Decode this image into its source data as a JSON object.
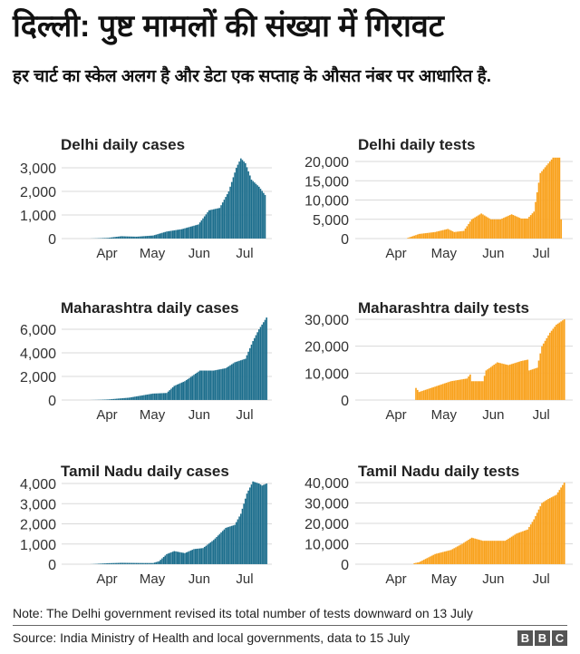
{
  "header": {
    "title": "दिल्ली: पुष्ट मामलों की संख्या में गिरावट",
    "subtitle": "हर चार्ट का स्केल अलग है और डेटा एक सप्ताह के औसत नंबर पर आधारित है."
  },
  "footer": {
    "note": "Note: The Delhi government revised its total number of tests downward on 13 July",
    "source": "Source: India Ministry of Health and local governments, data to 15 July",
    "logo": [
      "B",
      "B",
      "C"
    ]
  },
  "colors": {
    "cases": "#1b6d8c",
    "tests": "#f9a11b",
    "grid": "#d9d9d9"
  },
  "chart_data": [
    {
      "type": "bar",
      "title": "Delhi daily cases",
      "color": "#1b6d8c",
      "x_ticks": [
        "Apr",
        "May",
        "Jun",
        "Jul"
      ],
      "y_ticks": [
        0,
        1000,
        2000,
        3000
      ],
      "ylim": [
        0,
        3000
      ],
      "grid": true,
      "points": [
        [
          "Mar 20",
          0
        ],
        [
          "Apr 1",
          30
        ],
        [
          "Apr 10",
          100
        ],
        [
          "Apr 20",
          80
        ],
        [
          "May 1",
          130
        ],
        [
          "May 10",
          300
        ],
        [
          "May 20",
          400
        ],
        [
          "May 31",
          600
        ],
        [
          "Jun 7",
          1200
        ],
        [
          "Jun 14",
          1300
        ],
        [
          "Jun 20",
          2000
        ],
        [
          "Jun 25",
          3000
        ],
        [
          "Jun 28",
          3400
        ],
        [
          "Jul 1",
          3200
        ],
        [
          "Jul 5",
          2500
        ],
        [
          "Jul 10",
          2200
        ],
        [
          "Jul 14",
          1850
        ]
      ]
    },
    {
      "type": "bar",
      "title": "Delhi daily tests",
      "color": "#f9a11b",
      "x_ticks": [
        "Apr",
        "May",
        "Jun",
        "Jul"
      ],
      "y_ticks": [
        0,
        5000,
        10000,
        15000,
        20000
      ],
      "ylim": [
        0,
        20000
      ],
      "grid": true,
      "points": [
        [
          "Apr 8",
          200
        ],
        [
          "Apr 15",
          1200
        ],
        [
          "Apr 25",
          1700
        ],
        [
          "May 3",
          2500
        ],
        [
          "May 7",
          1700
        ],
        [
          "May 13",
          2000
        ],
        [
          "May 18",
          5000
        ],
        [
          "May 24",
          6500
        ],
        [
          "May 30",
          5000
        ],
        [
          "Jun 5",
          5000
        ],
        [
          "Jun 12",
          6300
        ],
        [
          "Jun 18",
          5200
        ],
        [
          "Jun 22",
          5200
        ],
        [
          "Jun 26",
          7000
        ],
        [
          "Jun 30",
          17000
        ],
        [
          "Jul 3",
          18500
        ],
        [
          "Jul 8",
          21000
        ],
        [
          "Jul 12",
          21000
        ],
        [
          "Jul 13",
          5000
        ]
      ]
    },
    {
      "type": "bar",
      "title": "Maharashtra daily cases",
      "color": "#1b6d8c",
      "x_ticks": [
        "Apr",
        "May",
        "Jun",
        "Jul"
      ],
      "y_ticks": [
        0,
        2000,
        4000,
        6000
      ],
      "ylim": [
        0,
        6000
      ],
      "grid": true,
      "points": [
        [
          "Mar 20",
          0
        ],
        [
          "Apr 1",
          50
        ],
        [
          "Apr 15",
          200
        ],
        [
          "May 1",
          550
        ],
        [
          "May 10",
          600
        ],
        [
          "May 15",
          1200
        ],
        [
          "May 22",
          1600
        ],
        [
          "Jun 1",
          2500
        ],
        [
          "Jun 10",
          2500
        ],
        [
          "Jun 18",
          2700
        ],
        [
          "Jun 24",
          3200
        ],
        [
          "Jul 1",
          3500
        ],
        [
          "Jul 6",
          5000
        ],
        [
          "Jul 10",
          6000
        ],
        [
          "Jul 15",
          7000
        ]
      ]
    },
    {
      "type": "bar",
      "title": "Maharashtra daily tests",
      "color": "#f9a11b",
      "x_ticks": [
        "Apr",
        "May",
        "Jun",
        "Jul"
      ],
      "y_ticks": [
        0,
        10000,
        20000,
        30000
      ],
      "ylim": [
        0,
        30000
      ],
      "grid": true,
      "points": [
        [
          "Apr 13",
          4500
        ],
        [
          "Apr 15",
          3000
        ],
        [
          "Apr 25",
          5000
        ],
        [
          "May 5",
          7000
        ],
        [
          "May 15",
          8000
        ],
        [
          "May 17",
          9500
        ],
        [
          "May 18",
          7000
        ],
        [
          "May 25",
          7000
        ],
        [
          "May 27",
          11000
        ],
        [
          "Jun 3",
          14000
        ],
        [
          "Jun 10",
          13000
        ],
        [
          "Jun 18",
          14500
        ],
        [
          "Jun 22",
          15000
        ],
        [
          "Jun 23",
          11000
        ],
        [
          "Jun 28",
          12000
        ],
        [
          "Jul 1",
          20000
        ],
        [
          "Jul 6",
          25000
        ],
        [
          "Jul 10",
          28000
        ],
        [
          "Jul 15",
          30000
        ]
      ]
    },
    {
      "type": "bar",
      "title": "Tamil Nadu daily cases",
      "color": "#1b6d8c",
      "x_ticks": [
        "Apr",
        "May",
        "Jun",
        "Jul"
      ],
      "y_ticks": [
        0,
        1000,
        2000,
        3000,
        4000
      ],
      "ylim": [
        0,
        4000
      ],
      "grid": true,
      "points": [
        [
          "Mar 20",
          0
        ],
        [
          "Apr 1",
          50
        ],
        [
          "Apr 10",
          70
        ],
        [
          "Apr 25",
          60
        ],
        [
          "May 1",
          60
        ],
        [
          "May 5",
          150
        ],
        [
          "May 10",
          500
        ],
        [
          "May 15",
          650
        ],
        [
          "May 22",
          550
        ],
        [
          "May 28",
          750
        ],
        [
          "Jun 3",
          800
        ],
        [
          "Jun 10",
          1200
        ],
        [
          "Jun 18",
          1800
        ],
        [
          "Jun 24",
          1950
        ],
        [
          "Jun 28",
          2500
        ],
        [
          "Jul 2",
          3500
        ],
        [
          "Jul 6",
          4100
        ],
        [
          "Jul 10",
          4000
        ],
        [
          "Jul 12",
          3900
        ],
        [
          "Jul 15",
          4000
        ]
      ]
    },
    {
      "type": "bar",
      "title": "Tamil Nadu daily tests",
      "color": "#f9a11b",
      "x_ticks": [
        "Apr",
        "May",
        "Jun",
        "Jul"
      ],
      "y_ticks": [
        0,
        10000,
        20000,
        30000,
        40000
      ],
      "ylim": [
        0,
        40000
      ],
      "grid": true,
      "points": [
        [
          "Apr 12",
          500
        ],
        [
          "Apr 15",
          1000
        ],
        [
          "Apr 25",
          5000
        ],
        [
          "May 5",
          7000
        ],
        [
          "May 12",
          10000
        ],
        [
          "May 18",
          13000
        ],
        [
          "May 25",
          11500
        ],
        [
          "Jun 1",
          11500
        ],
        [
          "Jun 8",
          11500
        ],
        [
          "Jun 15",
          15000
        ],
        [
          "Jun 22",
          17000
        ],
        [
          "Jun 26",
          22000
        ],
        [
          "Jul 1",
          30000
        ],
        [
          "Jul 5",
          32000
        ],
        [
          "Jul 10",
          34000
        ],
        [
          "Jul 15",
          40000
        ]
      ]
    }
  ]
}
